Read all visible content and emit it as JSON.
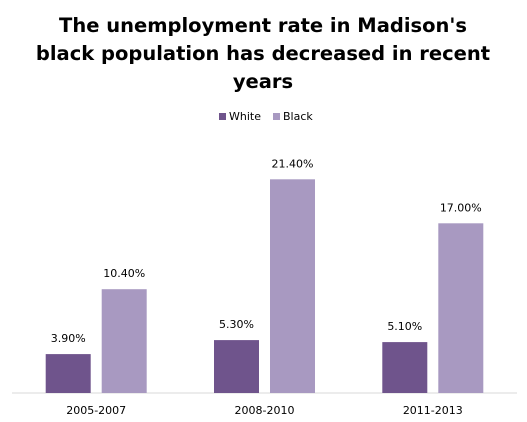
{
  "chart_data": {
    "type": "bar",
    "title_lines": [
      "The unemployment rate in Madison's",
      "black population has decreased in recent",
      "years"
    ],
    "categories": [
      "2005-2007",
      "2008-2010",
      "2011-2013"
    ],
    "series": [
      {
        "name": "White",
        "values": [
          3.9,
          5.3,
          5.1
        ],
        "labels": [
          "3.90%",
          "5.30%",
          "5.10%"
        ],
        "color": "#6f548c"
      },
      {
        "name": "Black",
        "values": [
          10.4,
          21.4,
          17.0
        ],
        "labels": [
          "10.40%",
          "21.40%",
          "17.00%"
        ],
        "color": "#a899c1"
      }
    ],
    "ylim": [
      0,
      25
    ],
    "legend_position": "top",
    "grid": false,
    "axis_color": "#d9d9d9"
  }
}
